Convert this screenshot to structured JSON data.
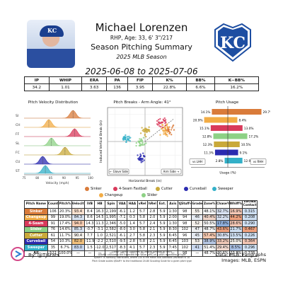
{
  "header": {
    "player_name": "Michael Lorenzen",
    "bio": "RHP, Age: 33, 6' 3\"/217",
    "title": "Season Pitching Summary",
    "subtitle": "2025 MLB Season",
    "date_range": "2025-06-08 to 2025-07-06",
    "team_logo_text": "KC",
    "cap_text": "KC"
  },
  "season_stats": {
    "headers": [
      "IP",
      "WHIP",
      "ERA",
      "PA",
      "FIP",
      "K%",
      "BB%",
      "K−BB%"
    ],
    "values": [
      "34.2",
      "1.01",
      "3.63",
      "136",
      "3.95",
      "22.8%",
      "6.6%",
      "16.2%"
    ]
  },
  "colors": {
    "Sinker": "#d97b3a",
    "Changeup": "#f2ac45",
    "4-Seam Fastball": "#d93a5b",
    "Cutter": "#c9a93a",
    "Curveball": "#2b2bb0",
    "Slider": "#8dd185",
    "Sweeper": "#33b0c8"
  },
  "velocity_panel": {
    "title": "Pitch Velocity Distribution",
    "xlabel": "Velocity (mph)",
    "xticks": [
      "75",
      "80",
      "85",
      "90",
      "95",
      "100"
    ],
    "rows": [
      {
        "label": "SI",
        "pitch": "Sinker",
        "mean": 93.4
      },
      {
        "label": "CH",
        "pitch": "Changeup",
        "mean": 84.3
      },
      {
        "label": "FF",
        "pitch": "4-Seam Fastball",
        "mean": 94.0
      },
      {
        "label": "SL",
        "pitch": "Slider",
        "mean": 85.3
      },
      {
        "label": "FC",
        "pitch": "Cutter",
        "mean": 90.4
      },
      {
        "label": "CU",
        "pitch": "Curveball",
        "mean": 82.0
      },
      {
        "label": "ST",
        "pitch": "Sweeper",
        "mean": 83.0
      }
    ]
  },
  "breaks_panel": {
    "title": "Pitch Breaks - Arm Angle: 41°",
    "xlabel": "Horizontal Break (in)",
    "ylabel": "Induced Vertical Break (in)",
    "glove_label": "← Glove Side",
    "arm_label": "Arm Side →"
  },
  "usage_panel": {
    "title": "Pitch Usage",
    "xlabel": "Usage (%)",
    "lhh_label": "vs LHH",
    "rhh_label": "vs RHH",
    "rows": [
      {
        "pitch": "Sinker",
        "lhh": 14.1,
        "rhh": 29.7,
        "lhh_label": "14.1%",
        "rhh_label": "29.7%"
      },
      {
        "pitch": "Changeup",
        "lhh": 20.9,
        "rhh": 8.4,
        "lhh_label": "20.9%",
        "rhh_label": "8.4%"
      },
      {
        "pitch": "4-Seam Fastball",
        "lhh": 15.1,
        "rhh": 13.0,
        "lhh_label": "15.1%",
        "rhh_label": "13.0%"
      },
      {
        "pitch": "Slider",
        "lhh": 12.8,
        "rhh": 17.2,
        "lhh_label": "12.8%",
        "rhh_label": "17.2%"
      },
      {
        "pitch": "Cutter",
        "lhh": 12.3,
        "rhh": 10.5,
        "lhh_label": "12.3%",
        "rhh_label": "10.5%"
      },
      {
        "pitch": "Curveball",
        "lhh": 11.3,
        "rhh": 9.1,
        "lhh_label": "11.3%",
        "rhh_label": "9.1%"
      },
      {
        "pitch": "Sweeper",
        "lhh": 2.8,
        "rhh": 12.9,
        "lhh_label": "2.8%",
        "rhh_label": "12.9%"
      }
    ]
  },
  "legend": [
    "Sinker",
    "4-Seam Fastball",
    "Cutter",
    "Curveball",
    "Sweeper",
    "Changeup",
    "Slider"
  ],
  "pitch_table": {
    "headers": [
      "Pitch Name",
      "Count",
      "Pitch%",
      "Velocity",
      "iVB",
      "HB",
      "Spin",
      "VAA",
      "HAA",
      "vRel",
      "hRel",
      "Ext.",
      "Axis",
      "tjStuff+",
      "Grade",
      "Zone%",
      "Chase%",
      "Whiff%",
      "xwOBA Contact"
    ],
    "rows": [
      [
        "Sinker",
        "106",
        "20.3%",
        "93.4",
        "8.4",
        "16.3",
        "2,199",
        "-6.1",
        "1.2",
        "5.7",
        "2.8",
        "5.9",
        "1:30",
        "98",
        "55",
        "48.1%",
        "32.7%",
        "16.9%",
        "0.315"
      ],
      [
        "Changeup",
        "99",
        "19.0%",
        "84.3",
        "8.6",
        "14.5",
        "1,995",
        "-7.1",
        "0.3",
        "5.8",
        "2.0",
        "5.9",
        "2:00",
        "94",
        "46",
        "40.4%",
        "32.2%",
        "44.2%",
        "0.208"
      ],
      [
        "4-Seam",
        "91",
        "17.4%",
        "94.0",
        "14.3",
        "11.3",
        "2,346",
        "-5.0",
        "1.4",
        "5.7",
        "2.4",
        "5.9",
        "1:30",
        "98",
        "52",
        "50.5%",
        "17.8%",
        "28.6%",
        "0.290"
      ],
      [
        "Slider",
        "76",
        "14.6%",
        "85.3",
        "-0.7",
        "-3.1",
        "2,582",
        "-8.0",
        "3.0",
        "5.8",
        "2.1",
        "5.9",
        "8:30",
        "102",
        "47",
        "48.7%",
        "43.6%",
        "21.7%",
        "0.467"
      ],
      [
        "Cutter",
        "61",
        "11.7%",
        "90.4",
        "7.7",
        "1.0",
        "2,521",
        "-6.1",
        "2.7",
        "5.8",
        "2.3",
        "5.9",
        "6:45",
        "96",
        "45",
        "57.4%",
        "30.8%",
        "13.5%",
        "0.226"
      ],
      [
        "Curveball",
        "54",
        "10.3%",
        "82.0",
        "-11.9",
        "-2.2",
        "2,510",
        "-9.5",
        "2.8",
        "5.8",
        "2.1",
        "5.9",
        "6:45",
        "103",
        "53",
        "38.9%",
        "33.2%",
        "25.0%",
        "0.364"
      ],
      [
        "Sweeper",
        "35",
        "6.7%",
        "83.0",
        "1.5",
        "-12.0",
        "2,517",
        "-8.3",
        "4.1",
        "5.7",
        "2.3",
        "5.9",
        "7:45",
        "102",
        "41",
        "51.4%",
        "29.4%",
        "8.5%",
        "0.296"
      ],
      [
        "All",
        "522",
        "100.0%",
        "—",
        "—",
        "—",
        "—",
        "—",
        "—",
        "—",
        "—",
        "—",
        "—",
        "98",
        "—",
        "48.7%",
        "30.6%",
        "23.8%",
        "0.338"
      ]
    ],
    "cell_colors": [
      [
        "",
        "",
        "",
        "#fbe1cf",
        "",
        "",
        "",
        "",
        "",
        "",
        "",
        "",
        "",
        "",
        "#f4f0eb",
        "#f6f6f6",
        "#d9e2f2",
        "#f4c7b5",
        "#cfe0f3"
      ],
      [
        "",
        "",
        "",
        "#dae4f2",
        "",
        "",
        "",
        "",
        "",
        "",
        "",
        "",
        "",
        "",
        "#e6ebf2",
        "#f1d6ca",
        "#d9e2f2",
        "#f0a27f",
        "#cfe0f3"
      ],
      [
        "",
        "",
        "",
        "#f8cdb3",
        "",
        "",
        "",
        "",
        "",
        "",
        "",
        "",
        "",
        "",
        "#f4f0eb",
        "#f6f6f6",
        "#8fb0dd",
        "#f4c7b5",
        "#cfe0f3"
      ],
      [
        "",
        "",
        "",
        "#dae4f2",
        "",
        "",
        "",
        "",
        "",
        "",
        "",
        "",
        "",
        "",
        "#eef0f2",
        "#f6f6f6",
        "#f0a27f",
        "#cfe0f3",
        "#f0a27f"
      ],
      [
        "",
        "",
        "",
        "#f4f0eb",
        "",
        "",
        "",
        "",
        "",
        "",
        "",
        "",
        "",
        "",
        "#e6ebf2",
        "#f7c9b0",
        "#d9e2f2",
        "#cfe0f3",
        "#cfe0f3"
      ],
      [
        "",
        "",
        "",
        "#f3c27f",
        "",
        "",
        "",
        "",
        "",
        "",
        "",
        "",
        "",
        "",
        "#f4f0eb",
        "#b8c9e6",
        "#f0c9b8",
        "#f4f0eb",
        "#f4c7b5"
      ],
      [
        "",
        "",
        "",
        "#c9d7ee",
        "",
        "",
        "",
        "",
        "",
        "",
        "",
        "",
        "",
        "",
        "#c9d7ee",
        "#f6f6f6",
        "#f0d9cf",
        "#a9c0e4",
        "#cfe0f3"
      ],
      [
        "",
        "",
        "",
        "",
        "",
        "",
        "",
        "",
        "",
        "",
        "",
        "",
        "",
        "",
        "",
        "",
        "",
        "",
        ""
      ]
    ]
  },
  "footer": {
    "byline": "By: @TJStats",
    "note_1": "Colour Coding Compares to League Average By Pitch",
    "note_2": "tjStuff+ calculates the Expected Run Value (xRV) of a pitch regardless of type",
    "note_3": "tjStuff+ is normally distributed, where 100 is the mean and Standard Deviation is 10",
    "note_4": "Pitch Grade scales tjStuff+ to the traditional 20-80 Scouting Scale for a given pitch type",
    "source_1": "Data: MLB, Fangraphs",
    "source_2": "Images: MLB, ESPN"
  },
  "chart_data": [
    {
      "type": "scatter",
      "title": "Pitch Breaks - Arm Angle: 41°",
      "xlabel": "Horizontal Break (in)",
      "ylabel": "Induced Vertical Break (in)",
      "xlim": [
        -25,
        25
      ],
      "ylim": [
        -25,
        25
      ],
      "series": [
        {
          "name": "Sinker",
          "center": [
            16.3,
            8.4
          ],
          "spread": [
            2.5,
            2.5
          ]
        },
        {
          "name": "Changeup",
          "center": [
            14.5,
            8.6
          ],
          "spread": [
            2.8,
            3.0
          ]
        },
        {
          "name": "4-Seam Fastball",
          "center": [
            11.3,
            14.3
          ],
          "spread": [
            2.5,
            2.5
          ]
        },
        {
          "name": "Slider",
          "center": [
            -3.1,
            -0.7
          ],
          "spread": [
            2.2,
            2.2
          ]
        },
        {
          "name": "Cutter",
          "center": [
            1.0,
            7.7
          ],
          "spread": [
            2.0,
            2.0
          ]
        },
        {
          "name": "Curveball",
          "center": [
            -2.2,
            -11.9
          ],
          "spread": [
            2.0,
            2.0
          ]
        },
        {
          "name": "Sweeper",
          "center": [
            -12.0,
            1.5
          ],
          "spread": [
            2.0,
            2.0
          ]
        }
      ]
    },
    {
      "type": "bar",
      "title": "Pitch Usage",
      "xlabel": "Usage (%)",
      "categories": [
        "Sinker",
        "Changeup",
        "4-Seam Fastball",
        "Slider",
        "Cutter",
        "Curveball",
        "Sweeper"
      ],
      "series": [
        {
          "name": "vs LHH",
          "values": [
            14.1,
            20.9,
            15.1,
            12.8,
            12.3,
            11.3,
            2.8
          ]
        },
        {
          "name": "vs RHH",
          "values": [
            29.7,
            8.4,
            13.0,
            17.2,
            10.5,
            9.1,
            12.9
          ]
        }
      ]
    }
  ]
}
